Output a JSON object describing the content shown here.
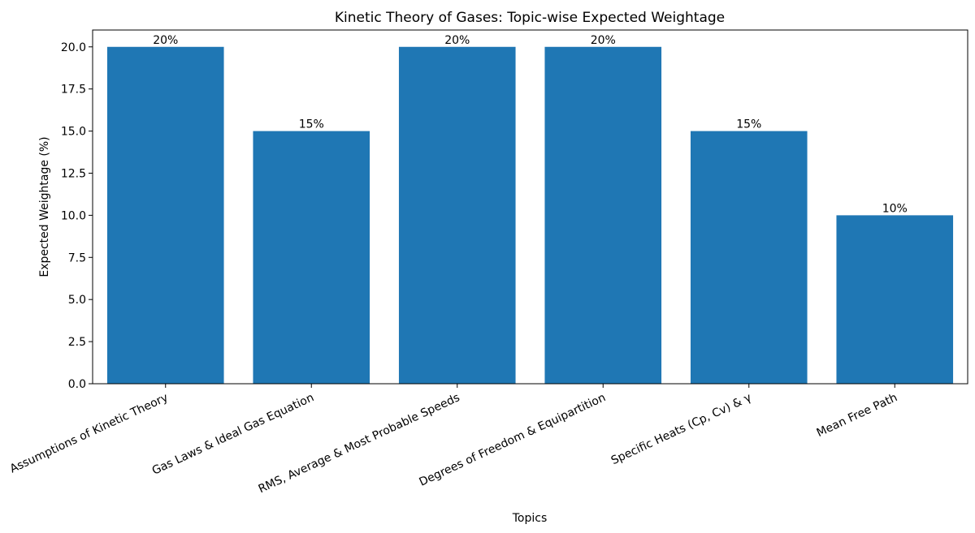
{
  "chart_data": {
    "type": "bar",
    "title": "Kinetic Theory of Gases: Topic-wise Expected Weightage",
    "xlabel": "Topics",
    "ylabel": "Expected Weightage (%)",
    "categories": [
      "Assumptions of Kinetic Theory",
      "Gas Laws & Ideal Gas Equation",
      "RMS, Average & Most Probable Speeds",
      "Degrees of Freedom & Equipartition",
      "Specific Heats (Cp, Cv) & γ",
      "Mean Free Path"
    ],
    "values": [
      20,
      15,
      20,
      20,
      15,
      10
    ],
    "data_labels": [
      "20%",
      "15%",
      "20%",
      "20%",
      "15%",
      "10%"
    ],
    "ylim": [
      0,
      21
    ],
    "yticks": [
      "0.0",
      "2.5",
      "5.0",
      "7.5",
      "10.0",
      "12.5",
      "15.0",
      "17.5",
      "20.0"
    ],
    "bar_color": "#1f77b4",
    "grid": false,
    "legend": "none"
  }
}
